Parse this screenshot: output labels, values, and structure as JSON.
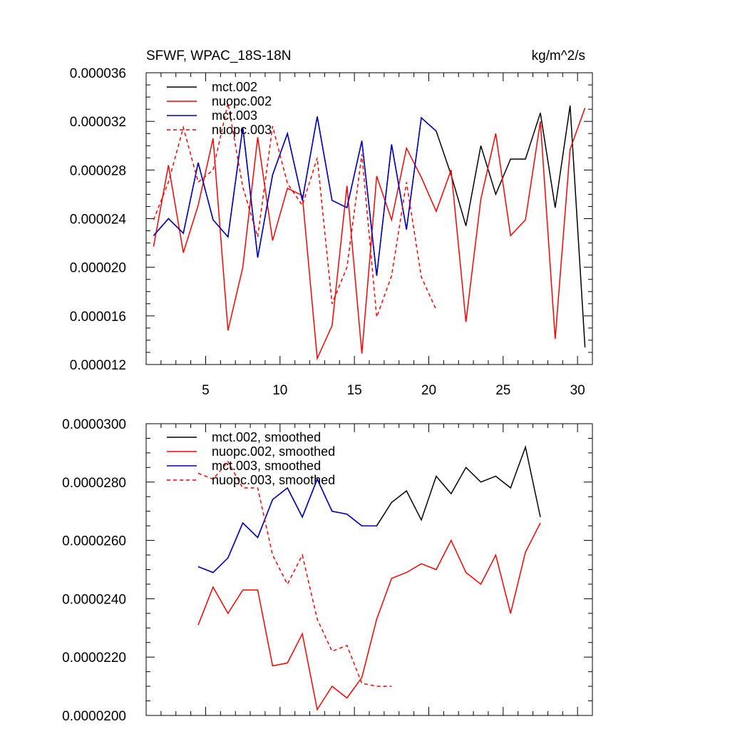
{
  "chart_data": [
    {
      "type": "line",
      "title": "SFWF, WPAC_18S-18N",
      "units": "kg/m^2/s",
      "xlabel": "",
      "ylabel": "",
      "xlim": [
        1.0,
        31.0
      ],
      "ylim": [
        1.2e-05,
        3.6e-05
      ],
      "x_ticks": [
        5,
        10,
        15,
        20,
        25,
        30
      ],
      "y_ticks": [
        1.2e-05,
        1.6e-05,
        2e-05,
        2.4e-05,
        2.8e-05,
        3.2e-05,
        3.6e-05
      ],
      "y_tick_labels": [
        "0.000012",
        "0.000016",
        "0.000020",
        "0.000024",
        "0.000028",
        "0.000032",
        "0.000036"
      ],
      "grid": false,
      "legend_position": "top-left",
      "series": [
        {
          "name": "mct.002",
          "color": "#000000",
          "dash": "solid",
          "x": [
            1.5,
            2.5,
            3.5,
            4.5,
            5.5,
            6.5,
            7.5,
            8.5,
            9.5,
            10.5,
            11.5,
            12.5,
            13.5,
            14.5,
            15.5,
            16.5,
            17.5,
            18.5,
            19.5,
            20.5,
            21.5,
            22.5,
            23.5,
            24.5,
            25.5,
            26.5,
            27.5,
            28.5,
            29.5,
            30.5
          ],
          "values": [
            2.26e-05,
            2.4e-05,
            2.28e-05,
            2.86e-05,
            2.39e-05,
            2.25e-05,
            3.15e-05,
            2.08e-05,
            2.76e-05,
            3.1e-05,
            2.55e-05,
            3.24e-05,
            2.55e-05,
            2.49e-05,
            3.04e-05,
            1.93e-05,
            3.01e-05,
            2.31e-05,
            3.23e-05,
            3.12e-05,
            2.76e-05,
            2.34e-05,
            3e-05,
            2.6e-05,
            2.89e-05,
            2.89e-05,
            3.27e-05,
            2.49e-05,
            3.33e-05,
            1.34e-05
          ]
        },
        {
          "name": "nuopc.002",
          "color": "#ff0000",
          "dash": "solid",
          "x": [
            1.5,
            2.5,
            3.5,
            4.5,
            5.5,
            6.5,
            7.5,
            8.5,
            9.5,
            10.5,
            11.5,
            12.5,
            13.5,
            14.5,
            15.5,
            16.5,
            17.5,
            18.5,
            19.5,
            20.5,
            21.5,
            22.5,
            23.5,
            24.5,
            25.5,
            26.5,
            27.5,
            28.5,
            29.5,
            30.5
          ],
          "values": [
            2.17e-05,
            2.84e-05,
            2.12e-05,
            2.51e-05,
            3.06e-05,
            1.48e-05,
            2e-05,
            3.07e-05,
            2.22e-05,
            2.65e-05,
            2.59e-05,
            1.25e-05,
            1.52e-05,
            2.67e-05,
            1.29e-05,
            2.75e-05,
            2.39e-05,
            2.98e-05,
            2.74e-05,
            2.46e-05,
            2.8e-05,
            1.55e-05,
            2.56e-05,
            3.1e-05,
            2.26e-05,
            2.39e-05,
            3.2e-05,
            1.41e-05,
            2.97e-05,
            3.31e-05
          ]
        },
        {
          "name": "mct.003",
          "color": "#0000cc",
          "dash": "solid",
          "x": [
            1.5,
            2.5,
            3.5,
            4.5,
            5.5,
            6.5,
            7.5,
            8.5,
            9.5,
            10.5,
            11.5,
            12.5,
            13.5,
            14.5,
            15.5,
            16.5,
            17.5,
            18.5,
            19.5,
            20.5
          ],
          "values": [
            2.26e-05,
            2.4e-05,
            2.28e-05,
            2.86e-05,
            2.39e-05,
            2.25e-05,
            3.15e-05,
            2.08e-05,
            2.76e-05,
            3.1e-05,
            2.55e-05,
            3.24e-05,
            2.55e-05,
            2.49e-05,
            3.04e-05,
            1.93e-05,
            3.01e-05,
            2.31e-05,
            3.23e-05,
            3.12e-05
          ]
        },
        {
          "name": "nuopc.003",
          "color": "#ff0000",
          "dash": "dashed",
          "x": [
            1.5,
            2.5,
            3.5,
            4.5,
            5.5,
            6.5,
            7.5,
            8.5,
            9.5,
            10.5,
            11.5,
            12.5,
            13.5,
            14.5,
            15.5,
            16.5,
            17.5,
            18.5,
            19.5,
            20.5
          ],
          "values": [
            2.39e-05,
            2.7e-05,
            3.15e-05,
            2.7e-05,
            2.8e-05,
            3.35e-05,
            2.66e-05,
            2.25e-05,
            3.16e-05,
            2.69e-05,
            2.51e-05,
            2.9e-05,
            1.7e-05,
            2e-05,
            2.93e-05,
            1.59e-05,
            1.93e-05,
            2.7e-05,
            1.92e-05,
            1.65e-05
          ]
        }
      ]
    },
    {
      "type": "line",
      "title": "",
      "units": "",
      "xlabel": "",
      "ylabel": "",
      "xlim": [
        1.0,
        31.0
      ],
      "ylim": [
        2e-05,
        3e-05
      ],
      "x_ticks": [
        5,
        10,
        15,
        20,
        25,
        30
      ],
      "y_ticks": [
        2e-05,
        2.2e-05,
        2.4e-05,
        2.6e-05,
        2.8e-05,
        3e-05
      ],
      "y_tick_labels": [
        "0.0000200",
        "0.0000220",
        "0.0000240",
        "0.0000260",
        "0.0000280",
        "0.0000300"
      ],
      "grid": false,
      "legend_position": "top-left",
      "series": [
        {
          "name": "mct.002, smoothed",
          "color": "#000000",
          "dash": "solid",
          "x": [
            4.5,
            5.5,
            6.5,
            7.5,
            8.5,
            9.5,
            10.5,
            11.5,
            12.5,
            13.5,
            14.5,
            15.5,
            16.5,
            17.5,
            18.5,
            19.5,
            20.5,
            21.5,
            22.5,
            23.5,
            24.5,
            25.5,
            26.5,
            27.5
          ],
          "values": [
            2.51e-05,
            2.49e-05,
            2.54e-05,
            2.66e-05,
            2.61e-05,
            2.74e-05,
            2.78e-05,
            2.68e-05,
            2.81e-05,
            2.7e-05,
            2.69e-05,
            2.65e-05,
            2.65e-05,
            2.73e-05,
            2.77e-05,
            2.67e-05,
            2.82e-05,
            2.76e-05,
            2.85e-05,
            2.8e-05,
            2.82e-05,
            2.78e-05,
            2.92e-05,
            2.68e-05
          ]
        },
        {
          "name": "nuopc.002, smoothed",
          "color": "#ff0000",
          "dash": "solid",
          "x": [
            4.5,
            5.5,
            6.5,
            7.5,
            8.5,
            9.5,
            10.5,
            11.5,
            12.5,
            13.5,
            14.5,
            15.5,
            16.5,
            17.5,
            18.5,
            19.5,
            20.5,
            21.5,
            22.5,
            23.5,
            24.5,
            25.5,
            26.5,
            27.5
          ],
          "values": [
            2.31e-05,
            2.44e-05,
            2.35e-05,
            2.43e-05,
            2.43e-05,
            2.17e-05,
            2.18e-05,
            2.28e-05,
            2.02e-05,
            2.1e-05,
            2.06e-05,
            2.13e-05,
            2.33e-05,
            2.47e-05,
            2.49e-05,
            2.52e-05,
            2.5e-05,
            2.6e-05,
            2.49e-05,
            2.45e-05,
            2.55e-05,
            2.35e-05,
            2.56e-05,
            2.66e-05
          ]
        },
        {
          "name": "mct.003, smoothed",
          "color": "#0000cc",
          "dash": "solid",
          "x": [
            4.5,
            5.5,
            6.5,
            7.5,
            8.5,
            9.5,
            10.5,
            11.5,
            12.5,
            13.5,
            14.5,
            15.5,
            16.5
          ],
          "values": [
            2.51e-05,
            2.49e-05,
            2.54e-05,
            2.66e-05,
            2.61e-05,
            2.74e-05,
            2.78e-05,
            2.68e-05,
            2.81e-05,
            2.7e-05,
            2.69e-05,
            2.65e-05,
            2.65e-05
          ]
        },
        {
          "name": "nuopc.003, smoothed",
          "color": "#ff0000",
          "dash": "dashed",
          "x": [
            4.5,
            5.5,
            6.5,
            7.5,
            8.5,
            9.5,
            10.5,
            11.5,
            12.5,
            13.5,
            14.5,
            15.5,
            16.5,
            17.5
          ],
          "values": [
            2.83e-05,
            2.81e-05,
            2.87e-05,
            2.78e-05,
            2.78e-05,
            2.55e-05,
            2.45e-05,
            2.55e-05,
            2.33e-05,
            2.22e-05,
            2.24e-05,
            2.11e-05,
            2.1e-05,
            2.1e-05
          ]
        }
      ]
    }
  ]
}
